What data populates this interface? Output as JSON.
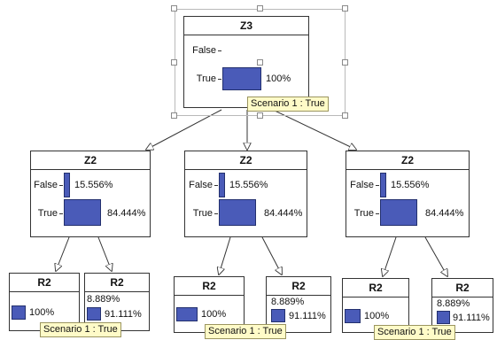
{
  "tooltip_text": "Scenario 1 : True",
  "colors": {
    "bar": "#4a5bb8",
    "tooltip_bg": "#fffbc8",
    "border": "#333333"
  },
  "root": {
    "title": "Z3",
    "states": [
      {
        "label": "False",
        "value": 0,
        "pct": ""
      },
      {
        "label": "True",
        "value": 1,
        "pct": "100%"
      }
    ]
  },
  "branches": [
    {
      "z2": {
        "title": "Z2",
        "states": [
          {
            "label": "False",
            "value": 0.15556,
            "pct": "15.556%"
          },
          {
            "label": "True",
            "value": 0.84444,
            "pct": "84.444%"
          }
        ]
      },
      "r2_left": {
        "title": "R2",
        "states": [
          {
            "value": 1,
            "pct": "100%"
          }
        ]
      },
      "r2_right": {
        "title": "R2",
        "states": [
          {
            "value": 0.08889,
            "pct": "8.889%"
          },
          {
            "value": 0.91111,
            "pct": "91.111%"
          }
        ]
      }
    },
    {
      "z2": {
        "title": "Z2",
        "states": [
          {
            "label": "False",
            "value": 0.15556,
            "pct": "15.556%"
          },
          {
            "label": "True",
            "value": 0.84444,
            "pct": "84.444%"
          }
        ]
      },
      "r2_left": {
        "title": "R2",
        "states": [
          {
            "value": 1,
            "pct": "100%"
          }
        ]
      },
      "r2_right": {
        "title": "R2",
        "states": [
          {
            "value": 0.08889,
            "pct": "8.889%"
          },
          {
            "value": 0.91111,
            "pct": "91.111%"
          }
        ]
      }
    },
    {
      "z2": {
        "title": "Z2",
        "states": [
          {
            "label": "False",
            "value": 0.15556,
            "pct": "15.556%"
          },
          {
            "label": "True",
            "value": 0.84444,
            "pct": "84.444%"
          }
        ]
      },
      "r2_left": {
        "title": "R2",
        "states": [
          {
            "value": 1,
            "pct": "100%"
          }
        ]
      },
      "r2_right": {
        "title": "R2",
        "states": [
          {
            "value": 0.08889,
            "pct": "8.889%"
          },
          {
            "value": 0.91111,
            "pct": "91.111%"
          }
        ]
      }
    }
  ]
}
